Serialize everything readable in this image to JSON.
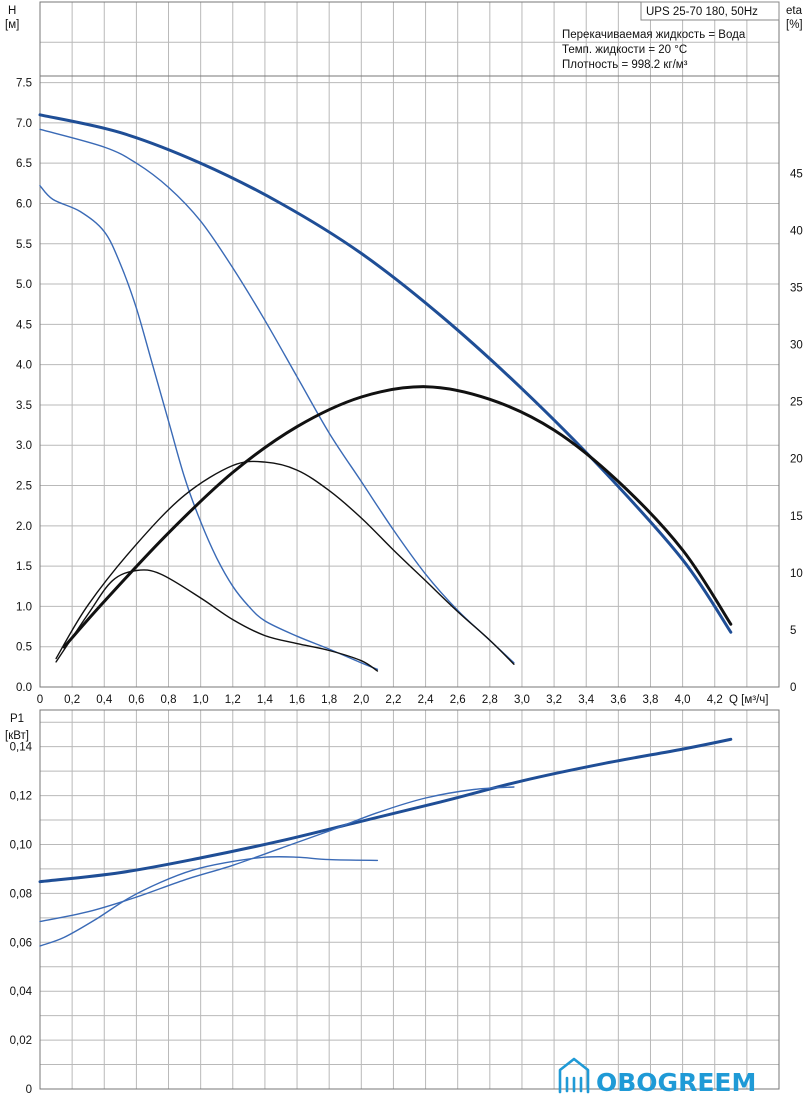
{
  "chart_data": [
    {
      "type": "line",
      "title": "UPS 25-70 180, 50Hz",
      "info_lines": [
        "Перекачиваемая жидкость = Вода",
        "Темп. жидкости = 20 °C",
        "Плотность = 998.2 кг/м³"
      ],
      "ylabel": [
        "H",
        "[м]"
      ],
      "y2label": [
        "eta",
        "[%]"
      ],
      "xlabel": "Q [м³/ч]",
      "xlim": [
        0,
        4.6
      ],
      "ylim": [
        0,
        8.5
      ],
      "y2lim": [
        0,
        60
      ],
      "x_ticks": [
        "0",
        "0,2",
        "0,4",
        "0,6",
        "0,8",
        "1,0",
        "1,2",
        "1,4",
        "1,6",
        "1,8",
        "2,0",
        "2,2",
        "2,4",
        "2,6",
        "2,8",
        "3,0",
        "3,2",
        "3,4",
        "3,6",
        "3,8",
        "4,0",
        "4,2"
      ],
      "y_ticks": [
        "0.0",
        "0.5",
        "1.0",
        "1.5",
        "2.0",
        "2.5",
        "3.0",
        "3.5",
        "4.0",
        "4.5",
        "5.0",
        "5.5",
        "6.0",
        "6.5",
        "7.0",
        "7.5"
      ],
      "y2_ticks": [
        "0",
        "5",
        "10",
        "15",
        "20",
        "25",
        "30",
        "35",
        "40",
        "45"
      ],
      "grid": true,
      "series": [
        {
          "axis": "H",
          "color": "#1f4e96",
          "weight": "thick",
          "points": [
            [
              0,
              7.1
            ],
            [
              0.5,
              6.88
            ],
            [
              1.0,
              6.5
            ],
            [
              1.5,
              6.0
            ],
            [
              2.0,
              5.38
            ],
            [
              2.5,
              4.6
            ],
            [
              3.0,
              3.7
            ],
            [
              3.5,
              2.7
            ],
            [
              4.0,
              1.58
            ],
            [
              4.3,
              0.68
            ]
          ]
        },
        {
          "axis": "H",
          "color": "#3a6ab6",
          "weight": "thin",
          "points": [
            [
              0,
              6.92
            ],
            [
              0.4,
              6.7
            ],
            [
              0.6,
              6.5
            ],
            [
              0.8,
              6.2
            ],
            [
              1.0,
              5.78
            ],
            [
              1.2,
              5.2
            ],
            [
              1.4,
              4.55
            ],
            [
              1.6,
              3.85
            ],
            [
              1.8,
              3.15
            ],
            [
              2.0,
              2.55
            ],
            [
              2.2,
              1.95
            ],
            [
              2.4,
              1.4
            ],
            [
              2.6,
              0.95
            ],
            [
              2.8,
              0.58
            ],
            [
              2.95,
              0.3
            ]
          ]
        },
        {
          "axis": "H",
          "color": "#3a6ab6",
          "weight": "thin",
          "points": [
            [
              0,
              6.22
            ],
            [
              0.08,
              6.05
            ],
            [
              0.25,
              5.9
            ],
            [
              0.4,
              5.65
            ],
            [
              0.5,
              5.25
            ],
            [
              0.6,
              4.7
            ],
            [
              0.7,
              4.0
            ],
            [
              0.8,
              3.3
            ],
            [
              0.9,
              2.6
            ],
            [
              1.0,
              2.05
            ],
            [
              1.1,
              1.6
            ],
            [
              1.2,
              1.25
            ],
            [
              1.3,
              1.0
            ],
            [
              1.4,
              0.82
            ],
            [
              1.6,
              0.63
            ],
            [
              1.8,
              0.47
            ],
            [
              2.0,
              0.3
            ],
            [
              2.1,
              0.22
            ]
          ]
        },
        {
          "axis": "eta",
          "color": "#111111",
          "weight": "thick",
          "points": [
            [
              0.15,
              3.5
            ],
            [
              0.4,
              7.5
            ],
            [
              0.8,
              13.5
            ],
            [
              1.2,
              18.8
            ],
            [
              1.6,
              22.8
            ],
            [
              2.0,
              25.4
            ],
            [
              2.4,
              26.3
            ],
            [
              2.8,
              25.2
            ],
            [
              3.2,
              22.5
            ],
            [
              3.6,
              18.0
            ],
            [
              4.0,
              12.0
            ],
            [
              4.3,
              5.5
            ]
          ]
        },
        {
          "axis": "eta",
          "color": "#111111",
          "weight": "thin",
          "points": [
            [
              0.1,
              2.5
            ],
            [
              0.3,
              7.2
            ],
            [
              0.6,
              12.5
            ],
            [
              0.9,
              16.8
            ],
            [
              1.2,
              19.4
            ],
            [
              1.4,
              19.7
            ],
            [
              1.6,
              19.0
            ],
            [
              1.8,
              17.2
            ],
            [
              2.0,
              14.8
            ],
            [
              2.2,
              12.0
            ],
            [
              2.4,
              9.3
            ],
            [
              2.6,
              6.6
            ],
            [
              2.8,
              4.1
            ],
            [
              2.95,
              2.0
            ]
          ]
        },
        {
          "axis": "eta",
          "color": "#111111",
          "weight": "thin",
          "points": [
            [
              0.1,
              2.2
            ],
            [
              0.3,
              6.4
            ],
            [
              0.45,
              9.3
            ],
            [
              0.6,
              10.2
            ],
            [
              0.75,
              9.9
            ],
            [
              1.0,
              7.8
            ],
            [
              1.2,
              5.9
            ],
            [
              1.4,
              4.5
            ],
            [
              1.6,
              3.8
            ],
            [
              1.8,
              3.2
            ],
            [
              2.0,
              2.3
            ],
            [
              2.1,
              1.4
            ]
          ]
        }
      ]
    },
    {
      "type": "line",
      "ylabel": [
        "P1",
        "[кВт]"
      ],
      "xlim": [
        0,
        4.6
      ],
      "ylim": [
        0,
        0.155
      ],
      "y_ticks": [
        "0",
        "0,02",
        "0,04",
        "0,06",
        "0,08",
        "0,10",
        "0,12",
        "0,14"
      ],
      "grid": true,
      "series": [
        {
          "color": "#1f4e96",
          "weight": "thick",
          "points": [
            [
              0,
              0.0848
            ],
            [
              0.5,
              0.0885
            ],
            [
              1.0,
              0.0945
            ],
            [
              1.5,
              0.1015
            ],
            [
              2.0,
              0.1095
            ],
            [
              2.5,
              0.1175
            ],
            [
              3.0,
              0.126
            ],
            [
              3.5,
              0.133
            ],
            [
              4.0,
              0.139
            ],
            [
              4.3,
              0.143
            ]
          ]
        },
        {
          "color": "#3a6ab6",
          "weight": "thin",
          "points": [
            [
              0,
              0.0685
            ],
            [
              0.3,
              0.0725
            ],
            [
              0.6,
              0.0785
            ],
            [
              0.9,
              0.0855
            ],
            [
              1.2,
              0.0915
            ],
            [
              1.5,
              0.0985
            ],
            [
              1.8,
              0.1055
            ],
            [
              2.1,
              0.113
            ],
            [
              2.4,
              0.119
            ],
            [
              2.7,
              0.1225
            ],
            [
              2.95,
              0.1235
            ]
          ]
        },
        {
          "color": "#3a6ab6",
          "weight": "thin",
          "points": [
            [
              0,
              0.0585
            ],
            [
              0.15,
              0.062
            ],
            [
              0.35,
              0.0695
            ],
            [
              0.55,
              0.078
            ],
            [
              0.75,
              0.0845
            ],
            [
              0.95,
              0.0895
            ],
            [
              1.15,
              0.0925
            ],
            [
              1.4,
              0.0948
            ],
            [
              1.6,
              0.0948
            ],
            [
              1.8,
              0.0938
            ],
            [
              2.1,
              0.0935
            ]
          ]
        }
      ]
    }
  ],
  "logo": {
    "text": "OBOGREEM",
    "icon": "house-radiator-icon",
    "color": "#1f9ad6"
  }
}
